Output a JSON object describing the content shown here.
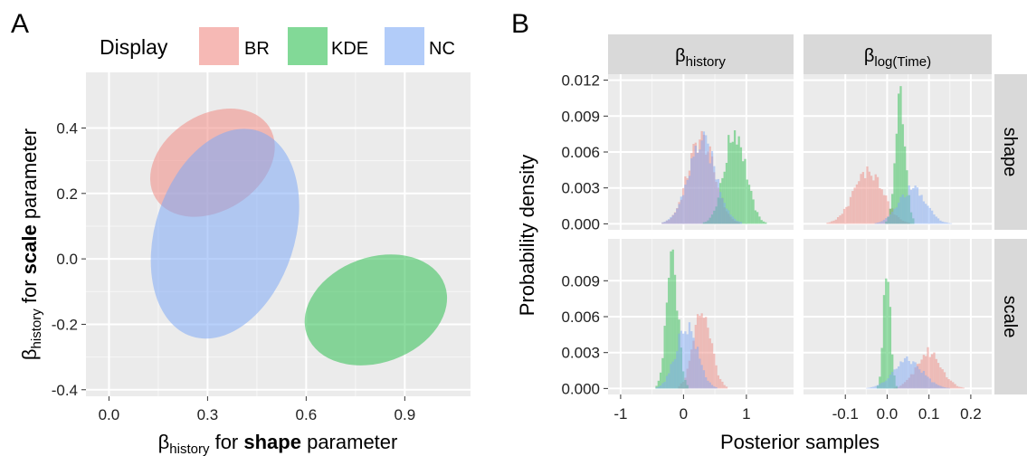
{
  "colors": {
    "BR": "#f08b84",
    "KDE": "#2fbf52",
    "NC": "#7faaf5",
    "panel_bg": "#ebebeb",
    "strip_bg": "#d9d9d9",
    "grid": "#ffffff"
  },
  "chart_data": [
    {
      "panel": "A",
      "type": "scatter",
      "xlabel": {
        "pre": "β",
        "sub": "history",
        "mid": " for ",
        "bold": "shape",
        "post": " parameter"
      },
      "ylabel": {
        "pre": "β",
        "sub": "history",
        "mid": " for ",
        "bold": "scale",
        "post": " parameter"
      },
      "xlim": [
        -0.07,
        1.1
      ],
      "ylim": [
        -0.42,
        0.57
      ],
      "xticks": [
        0.0,
        0.3,
        0.6,
        0.9
      ],
      "xtick_labels": [
        "0.0",
        "0.3",
        "0.6",
        "0.9"
      ],
      "yticks": [
        -0.4,
        -0.2,
        0.0,
        0.2,
        0.4
      ],
      "ytick_labels": [
        "-0.4",
        "-0.2",
        "0.0",
        "0.2",
        "0.4"
      ],
      "grid": true,
      "legend": {
        "title": "Display",
        "position": "top",
        "entries": [
          "BR",
          "KDE",
          "NC"
        ]
      },
      "ellipses": [
        {
          "name": "BR",
          "cx": 0.315,
          "cy": 0.294,
          "rx": 0.204,
          "ry": 0.147,
          "angle_deg": 32
        },
        {
          "name": "KDE",
          "cx": 0.812,
          "cy": -0.156,
          "rx": 0.223,
          "ry": 0.161,
          "angle_deg": 20
        },
        {
          "name": "NC",
          "cx": 0.353,
          "cy": 0.077,
          "rx": 0.212,
          "ry": 0.33,
          "angle_deg": -18
        }
      ]
    },
    {
      "panel": "B",
      "type": "histogram",
      "xlabel": "Posterior samples",
      "ylabel": "Probability density",
      "columns": [
        {
          "strip": {
            "pre": "β",
            "sub": "history"
          },
          "xlim": [
            -1.2,
            1.75
          ],
          "xticks": [
            -1,
            0,
            1
          ],
          "xtick_labels": [
            "-1",
            "0",
            "1"
          ]
        },
        {
          "strip": {
            "pre": "β",
            "sub": "log(Time)"
          },
          "xlim": [
            -0.2,
            0.25
          ],
          "xticks": [
            -0.1,
            0.0,
            0.1,
            0.2
          ],
          "xtick_labels": [
            "-0.1",
            "0.0",
            "0.1",
            "0.2"
          ]
        }
      ],
      "rows": [
        {
          "strip": "shape",
          "ylim": [
            -0.0005,
            0.0125
          ],
          "yticks": [
            0.0,
            0.003,
            0.006,
            0.009,
            0.012
          ],
          "ytick_labels": [
            "0.000",
            "0.003",
            "0.006",
            "0.009",
            "0.012"
          ]
        },
        {
          "strip": "scale",
          "ylim": [
            -0.0005,
            0.0125
          ],
          "yticks": [
            0.0,
            0.003,
            0.006,
            0.009
          ],
          "ytick_labels": [
            "0.000",
            "0.003",
            "0.006",
            "0.009"
          ]
        }
      ],
      "distributions": [
        {
          "row": 0,
          "col": 0,
          "series": "BR",
          "mean": 0.28,
          "sd": 0.21,
          "peak": 0.0073
        },
        {
          "row": 0,
          "col": 0,
          "series": "KDE",
          "mean": 0.82,
          "sd": 0.17,
          "peak": 0.008
        },
        {
          "row": 0,
          "col": 0,
          "series": "NC",
          "mean": 0.3,
          "sd": 0.22,
          "peak": 0.007
        },
        {
          "row": 0,
          "col": 1,
          "series": "BR",
          "mean": -0.045,
          "sd": 0.035,
          "peak": 0.0045
        },
        {
          "row": 0,
          "col": 1,
          "series": "KDE",
          "mean": 0.032,
          "sd": 0.012,
          "peak": 0.0112
        },
        {
          "row": 0,
          "col": 1,
          "series": "NC",
          "mean": 0.06,
          "sd": 0.032,
          "peak": 0.003
        },
        {
          "row": 1,
          "col": 0,
          "series": "BR",
          "mean": 0.3,
          "sd": 0.14,
          "peak": 0.0068
        },
        {
          "row": 1,
          "col": 0,
          "series": "KDE",
          "mean": -0.18,
          "sd": 0.09,
          "peak": 0.0112
        },
        {
          "row": 1,
          "col": 0,
          "series": "NC",
          "mean": 0.05,
          "sd": 0.17,
          "peak": 0.0054
        },
        {
          "row": 1,
          "col": 1,
          "series": "BR",
          "mean": 0.1,
          "sd": 0.03,
          "peak": 0.0031
        },
        {
          "row": 1,
          "col": 1,
          "series": "KDE",
          "mean": 0.0,
          "sd": 0.008,
          "peak": 0.0112
        },
        {
          "row": 1,
          "col": 1,
          "series": "NC",
          "mean": 0.05,
          "sd": 0.035,
          "peak": 0.0024
        }
      ]
    }
  ],
  "labels": {
    "panel_a": "A",
    "panel_b": "B"
  }
}
